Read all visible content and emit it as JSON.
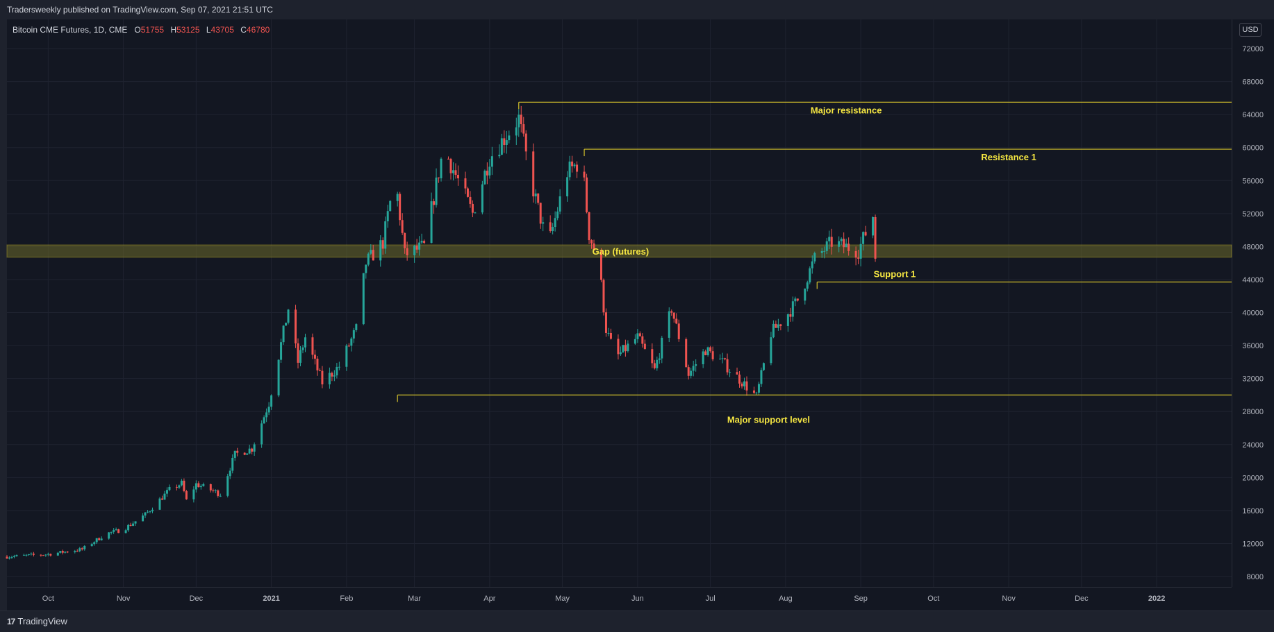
{
  "header": {
    "published_text": "Tradersweekly published on TradingView.com, Sep 07, 2021 21:51 UTC"
  },
  "footer": {
    "brand_text": "TradingView",
    "logo_mark": "17"
  },
  "legend": {
    "symbol_text": "Bitcoin CME Futures, 1D, CME",
    "open_label": "O",
    "open_value": "51755",
    "high_label": "H",
    "high_value": "53125",
    "low_label": "L",
    "low_value": "43705",
    "close_label": "C",
    "close_value": "46780"
  },
  "price_axis": {
    "currency_badge": "USD"
  },
  "colors": {
    "background": "#131722",
    "grid": "#1f2330",
    "bull": "#26a69a",
    "bear": "#ef5350",
    "level_line": "#d4c12b",
    "annotation_text": "#f5e642",
    "gap_zone": "#6b6a2a"
  },
  "chart_data": {
    "type": "candlestick",
    "title": "Bitcoin CME Futures, 1D, CME",
    "ylim": [
      6000,
      74500
    ],
    "y_ticks": [
      8000,
      12000,
      16000,
      20000,
      24000,
      28000,
      32000,
      36000,
      40000,
      44000,
      48000,
      52000,
      56000,
      60000,
      64000,
      68000,
      72000
    ],
    "x_range": [
      "2020-09-14",
      "2022-01-17"
    ],
    "x_ticks": [
      {
        "date": "2020-10-01",
        "label": "Oct"
      },
      {
        "date": "2020-11-01",
        "label": "Nov"
      },
      {
        "date": "2020-12-01",
        "label": "Dec"
      },
      {
        "date": "2021-01-01",
        "label": "2021"
      },
      {
        "date": "2021-02-01",
        "label": "Feb"
      },
      {
        "date": "2021-03-01",
        "label": "Mar"
      },
      {
        "date": "2021-04-01",
        "label": "Apr"
      },
      {
        "date": "2021-05-01",
        "label": "May"
      },
      {
        "date": "2021-06-01",
        "label": "Jun"
      },
      {
        "date": "2021-07-01",
        "label": "Jul"
      },
      {
        "date": "2021-08-01",
        "label": "Aug"
      },
      {
        "date": "2021-09-01",
        "label": "Sep"
      },
      {
        "date": "2021-10-01",
        "label": "Oct"
      },
      {
        "date": "2021-11-01",
        "label": "Nov"
      },
      {
        "date": "2021-12-01",
        "label": "Dec"
      },
      {
        "date": "2022-01-01",
        "label": "2022"
      }
    ],
    "grid": true,
    "closes": [
      {
        "date": "2020-09-14",
        "close": 10400
      },
      {
        "date": "2020-10-01",
        "close": 10700
      },
      {
        "date": "2020-10-15",
        "close": 11300
      },
      {
        "date": "2020-10-25",
        "close": 13200
      },
      {
        "date": "2020-11-01",
        "close": 13700
      },
      {
        "date": "2020-11-10",
        "close": 15500
      },
      {
        "date": "2020-11-20",
        "close": 18500
      },
      {
        "date": "2020-11-25",
        "close": 19300
      },
      {
        "date": "2020-11-27",
        "close": 17200
      },
      {
        "date": "2020-12-01",
        "close": 19200
      },
      {
        "date": "2020-12-11",
        "close": 18000
      },
      {
        "date": "2020-12-17",
        "close": 22800
      },
      {
        "date": "2020-12-24",
        "close": 23500
      },
      {
        "date": "2020-12-31",
        "close": 29000
      },
      {
        "date": "2021-01-08",
        "close": 40500
      },
      {
        "date": "2021-01-12",
        "close": 34000
      },
      {
        "date": "2021-01-15",
        "close": 37000
      },
      {
        "date": "2021-01-22",
        "close": 31500
      },
      {
        "date": "2021-01-29",
        "close": 33500
      },
      {
        "date": "2021-02-05",
        "close": 38000
      },
      {
        "date": "2021-02-09",
        "close": 46000
      },
      {
        "date": "2021-02-16",
        "close": 48500
      },
      {
        "date": "2021-02-21",
        "close": 56500
      },
      {
        "date": "2021-02-25",
        "close": 47000
      },
      {
        "date": "2021-03-05",
        "close": 48000
      },
      {
        "date": "2021-03-13",
        "close": 60000
      },
      {
        "date": "2021-03-25",
        "close": 52000
      },
      {
        "date": "2021-04-01",
        "close": 58800
      },
      {
        "date": "2021-04-13",
        "close": 63500
      },
      {
        "date": "2021-04-18",
        "close": 56000
      },
      {
        "date": "2021-04-25",
        "close": 48000
      },
      {
        "date": "2021-05-03",
        "close": 57000
      },
      {
        "date": "2021-05-09",
        "close": 58500
      },
      {
        "date": "2021-05-12",
        "close": 49500
      },
      {
        "date": "2021-05-16",
        "close": 46000
      },
      {
        "date": "2021-05-19",
        "close": 38000
      },
      {
        "date": "2021-05-23",
        "close": 34500
      },
      {
        "date": "2021-06-01",
        "close": 37000
      },
      {
        "date": "2021-06-08",
        "close": 33000
      },
      {
        "date": "2021-06-15",
        "close": 40500
      },
      {
        "date": "2021-06-22",
        "close": 32500
      },
      {
        "date": "2021-06-29",
        "close": 35500
      },
      {
        "date": "2021-07-06",
        "close": 34000
      },
      {
        "date": "2021-07-20",
        "close": 29800
      },
      {
        "date": "2021-07-26",
        "close": 37500
      },
      {
        "date": "2021-08-01",
        "close": 39500
      },
      {
        "date": "2021-08-06",
        "close": 41500
      },
      {
        "date": "2021-08-13",
        "close": 46500
      },
      {
        "date": "2021-08-20",
        "close": 48500
      },
      {
        "date": "2021-08-31",
        "close": 47500
      },
      {
        "date": "2021-09-06",
        "close": 51755
      },
      {
        "date": "2021-09-07",
        "close": 46780
      }
    ],
    "levels": [
      {
        "label": "Major resistance",
        "price": 65500,
        "from": "2021-04-13",
        "label_date": "2021-08-26",
        "label_position": "below"
      },
      {
        "label": "Resistance 1",
        "price": 59800,
        "from": "2021-05-10",
        "label_date": "2021-11-01",
        "label_position": "below"
      },
      {
        "label": "Support 1",
        "price": 43700,
        "from": "2021-08-14",
        "label_date": "2021-09-15",
        "label_position": "above"
      },
      {
        "label": "Major support level",
        "price": 30000,
        "from": "2021-02-22",
        "label_date": "2021-07-25",
        "label_position": "below"
      }
    ],
    "zones": [
      {
        "label": "Gap (futures)",
        "price_low": 46700,
        "price_high": 48200,
        "label_date": "2021-05-25"
      }
    ]
  }
}
